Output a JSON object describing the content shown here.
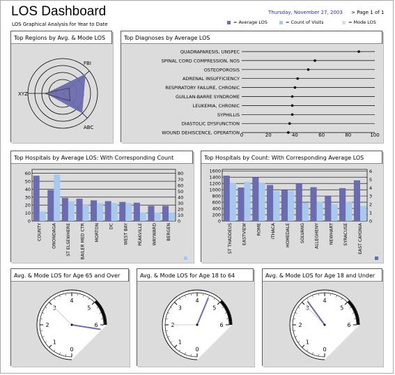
{
  "header": {
    "title": "LOS Dashboard",
    "subtitle": "LOS Graphical Analysis for Year to Date",
    "date": "Thursday, November 27, 2003",
    "page": "> Page 1 of 1"
  },
  "legend": [
    {
      "label": "= Average LOS",
      "color": "#6b6bb0"
    },
    {
      "label": "= Count of Visits",
      "color": "#a8c8ee"
    },
    {
      "label": "= Mode LOS",
      "color": "#dcdcdc"
    }
  ],
  "colors": {
    "avg": "#6b6bb0",
    "count": "#a8c8ee",
    "bg": "#dcdcdc"
  },
  "panels": {
    "regions": {
      "title": "Top Regions by Avg. & Mode LOS",
      "chart_data": {
        "type": "radar",
        "axes": [
          "FBI",
          "XYZ",
          "ABC"
        ],
        "series": [
          {
            "name": "Average LOS",
            "values": [
              4.2,
              2.3,
              3.9
            ]
          },
          {
            "name": "Mode LOS",
            "values": [
              1.2,
              2.6,
              1.5
            ]
          }
        ],
        "rmax": 5
      }
    },
    "diagnoses": {
      "title": "Top Diagnoses by Average LOS",
      "chart_data": {
        "type": "scatter",
        "categories": [
          "QUADRAPARESIS, UNSPEC",
          "SPINAL CORD COMPRESSION, NOS",
          "OSTEOPOROSIS",
          "ADRENAL INSUFFICIENCY",
          "RESPIRATORY FAILURE, CHRONIC",
          "GUILLAN-BARRE SYNDROME",
          "LEUKEMIA, CHRONIC",
          "SYPHILLIS",
          "DIASTOLIC DYSFUNCTION",
          "WOUND DEHISCENCE, OPERATION"
        ],
        "values": [
          88,
          55,
          50,
          42,
          40,
          38,
          38,
          38,
          36,
          35
        ],
        "ticks": [
          "0",
          "20",
          "40",
          "60",
          "80",
          "100"
        ],
        "xlim": [
          0,
          100
        ]
      }
    },
    "hosp_los": {
      "title": "Top Hospitals by Average LOS: With Corresponding Count",
      "chart_data": {
        "type": "bar",
        "categories": [
          "COUNTY",
          "ONONDAGA",
          "ST ELSEWHERE",
          "BAILER MED CTR",
          "MORTON",
          "DC",
          "WEST BAY",
          "PEAKVILLE",
          "WAYWARD",
          "BERGEN"
        ],
        "series": [
          {
            "name": "Average LOS",
            "values": [
              57,
              39,
              29,
              28,
              26,
              25,
              24,
              23,
              19,
              19
            ]
          },
          {
            "name": "Count of Visits",
            "values": [
              16,
              78,
              33,
              27,
              30,
              30,
              30,
              14,
              14,
              14
            ]
          }
        ],
        "left_ticks": [
          "0",
          "10",
          "20",
          "30",
          "40",
          "50",
          "60"
        ],
        "right_ticks": [
          "0",
          "10",
          "20",
          "30",
          "40",
          "50",
          "60",
          "70",
          "80"
        ],
        "ylim_left": [
          0,
          65
        ],
        "ylim_right": [
          0,
          86.7
        ]
      }
    },
    "hosp_count": {
      "title": "Top Hospitals by Count: With Corresponding Average LOS",
      "chart_data": {
        "type": "bar",
        "categories": [
          "ST THADDEUS",
          "EASTVIEW",
          "ROME",
          "ITHACA",
          "HOMEDALE",
          "SOLVANG",
          "ALLEGHENY",
          "NEWHART",
          "SYRACUSE",
          "EAST CAYONIA"
        ],
        "series": [
          {
            "name": "Count of Visits",
            "values": [
              1450,
              1070,
              1400,
              1150,
              1000,
              1200,
              1080,
              800,
              1050,
              1300
            ]
          },
          {
            "name": "Average LOS",
            "values": [
              4.6,
              4.7,
              4.6,
              3.6,
              3.6,
              2.2,
              2.3,
              2.0,
              2.3,
              1.8
            ]
          }
        ],
        "left_ticks": [
          "0",
          "200",
          "400",
          "600",
          "800",
          "1000",
          "1200",
          "1400",
          "1600"
        ],
        "right_ticks": [
          "0",
          "1",
          "2",
          "3",
          "4",
          "5",
          "6"
        ],
        "ylim_left": [
          0,
          1650
        ],
        "ylim_right": [
          0,
          6.2
        ]
      }
    },
    "gauges": [
      {
        "title": "Avg. & Mode LOS for Age 65 and Over",
        "avg": 6.2,
        "mode": 3
      },
      {
        "title": "Avg. & Mode LOS for Age 18 to 64",
        "avg": 4.5,
        "mode": 2
      },
      {
        "title": "Avg. & Mode LOS for Age 18 and Under",
        "avg": 3.2,
        "mode": 3
      }
    ],
    "gauge_labels": [
      "0",
      "1",
      "2",
      "3",
      "4",
      "5",
      "6"
    ]
  }
}
